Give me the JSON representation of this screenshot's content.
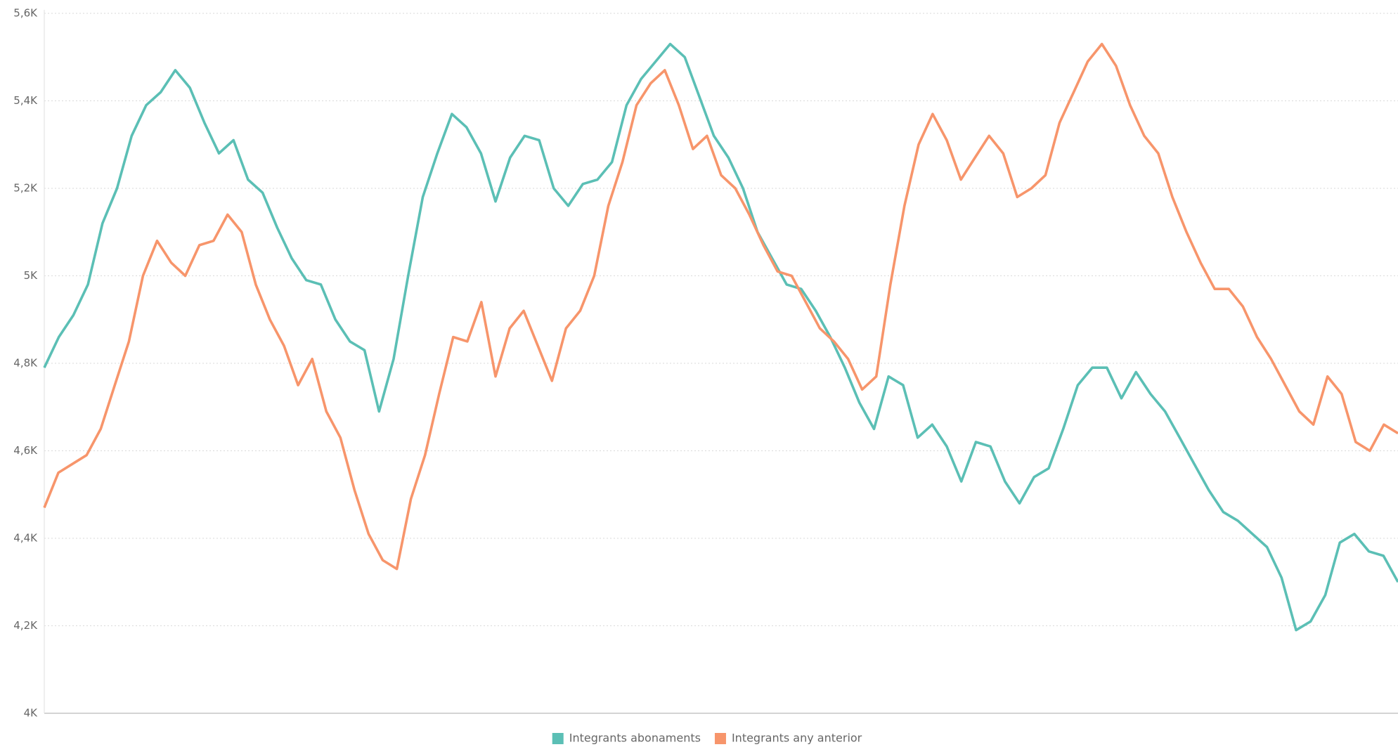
{
  "chart_data": {
    "type": "line",
    "ylim": [
      4000,
      5600
    ],
    "yticks": [
      {
        "value": 4000,
        "label": "4K"
      },
      {
        "value": 4200,
        "label": "4,2K"
      },
      {
        "value": 4400,
        "label": "4,4K"
      },
      {
        "value": 4600,
        "label": "4,6K"
      },
      {
        "value": 4800,
        "label": "4,8K"
      },
      {
        "value": 5000,
        "label": "5K"
      },
      {
        "value": 5200,
        "label": "5,2K"
      },
      {
        "value": 5400,
        "label": "5,4K"
      },
      {
        "value": 5600,
        "label": "5,6K"
      }
    ],
    "grid": true,
    "legend": "bottom",
    "series": [
      {
        "name": "Integrants abonaments",
        "color": "#5bbfb5",
        "values": [
          4790,
          4860,
          4910,
          4980,
          5120,
          5200,
          5320,
          5390,
          5420,
          5470,
          5430,
          5350,
          5280,
          5310,
          5220,
          5190,
          5110,
          5040,
          4990,
          4980,
          4900,
          4850,
          4830,
          4690,
          4810,
          5000,
          5180,
          5280,
          5370,
          5340,
          5280,
          5170,
          5270,
          5320,
          5310,
          5200,
          5160,
          5210,
          5220,
          5260,
          5390,
          5450,
          5490,
          5530,
          5500,
          5410,
          5320,
          5270,
          5200,
          5100,
          5040,
          4980,
          4970,
          4920,
          4860,
          4790,
          4710,
          4650,
          4770,
          4750,
          4630,
          4660,
          4610,
          4530,
          4620,
          4610,
          4530,
          4480,
          4540,
          4560,
          4650,
          4750,
          4790,
          4790,
          4720,
          4780,
          4730,
          4690,
          4630,
          4570,
          4510,
          4460,
          4440,
          4410,
          4380,
          4310,
          4190,
          4210,
          4270,
          4390,
          4410,
          4370,
          4360,
          4300
        ]
      },
      {
        "name": "Integrants any anterior",
        "color": "#f7956b",
        "values": [
          4470,
          4550,
          4570,
          4590,
          4650,
          4750,
          4850,
          5000,
          5080,
          5030,
          5000,
          5070,
          5080,
          5140,
          5100,
          4980,
          4900,
          4840,
          4750,
          4810,
          4690,
          4630,
          4510,
          4410,
          4350,
          4330,
          4490,
          4590,
          4730,
          4860,
          4850,
          4940,
          4770,
          4880,
          4920,
          4840,
          4760,
          4880,
          4920,
          5000,
          5160,
          5260,
          5390,
          5440,
          5470,
          5390,
          5290,
          5320,
          5230,
          5200,
          5140,
          5070,
          5010,
          5000,
          4940,
          4880,
          4850,
          4810,
          4740,
          4770,
          4980,
          5160,
          5300,
          5370,
          5310,
          5220,
          5270,
          5320,
          5280,
          5180,
          5200,
          5230,
          5350,
          5420,
          5490,
          5530,
          5480,
          5390,
          5320,
          5280,
          5180,
          5100,
          5030,
          4970,
          4970,
          4930,
          4860,
          4810,
          4750,
          4690,
          4660,
          4770,
          4730,
          4620,
          4600,
          4660,
          4640
        ]
      }
    ]
  }
}
